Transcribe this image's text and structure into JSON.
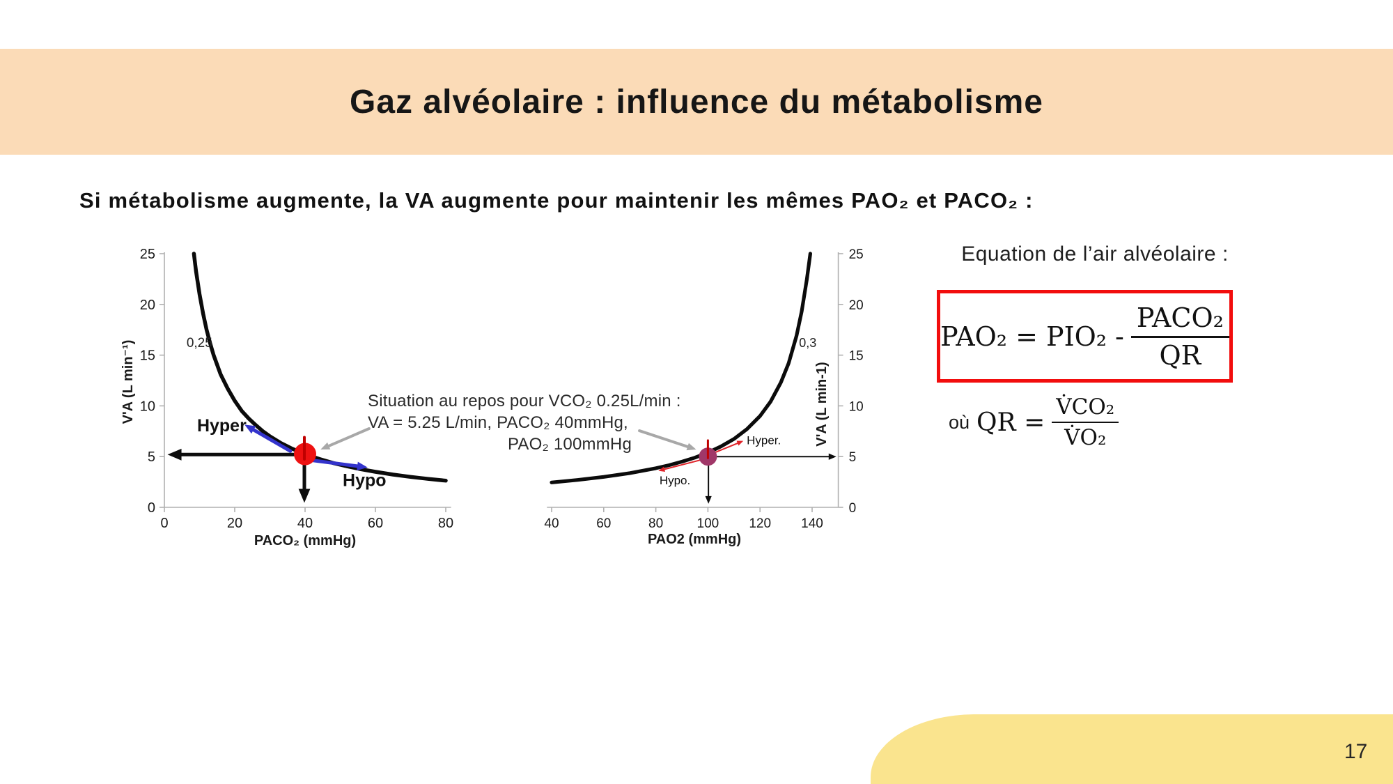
{
  "slide": {
    "title": "Gaz alvéolaire : influence du métabolisme",
    "subtitle": "Si métabolisme augmente, la VA augmente pour maintenir les mêmes PAO₂ et PACO₂ :",
    "page_number": "17"
  },
  "annotation": {
    "lines": [
      "Situation au repos pour VCO₂ 0.25L/min :",
      "VA = 5.25 L/min, PACO₂ 40mmHg,",
      "PAO₂ 100mmHg"
    ]
  },
  "equation_panel": {
    "heading": "Equation de l’air alvéolaire :",
    "boxed": {
      "lhs": "PAO₂ = PIO₂ -",
      "numerator": "PACO₂",
      "denominator": "QR"
    },
    "qr": {
      "prefix": "où",
      "lhs": "QR =",
      "numerator": "V̇CO₂",
      "denominator": "V̇O₂"
    }
  },
  "colors": {
    "header_band": "#fbdbb7",
    "footer_blob": "#fae48e",
    "equation_box_border": "#f20d0d",
    "axis": "#b0b0b0",
    "curve": "#0b0b0b",
    "blue_arrow": "#3333cc",
    "red_arrow": "#e0242a",
    "gray_arrow": "#a8a8a8"
  },
  "chart_data": [
    {
      "type": "line",
      "name": "iso-metabolic VCO2 curve",
      "xlabel": "PACO₂ (mmHg)",
      "ylabel": "V'A (L min⁻¹)",
      "xlim": [
        0,
        81.5
      ],
      "ylim": [
        0,
        25
      ],
      "x_ticks": [
        0,
        20,
        40,
        60,
        80
      ],
      "y_ticks": [
        0,
        5,
        10,
        15,
        20,
        25
      ],
      "curve_label": {
        "text": "0,25",
        "x": 6.3,
        "y": 15.8,
        "size": 19
      },
      "curve_points": [
        [
          8.4,
          25
        ],
        [
          9,
          23.3
        ],
        [
          10,
          21
        ],
        [
          11,
          19.1
        ],
        [
          12,
          17.5
        ],
        [
          13,
          16.2
        ],
        [
          14,
          15
        ],
        [
          16,
          13.1
        ],
        [
          18,
          11.7
        ],
        [
          20,
          10.5
        ],
        [
          22,
          9.5
        ],
        [
          24,
          8.75
        ],
        [
          26,
          8.1
        ],
        [
          28,
          7.5
        ],
        [
          30,
          7.0
        ],
        [
          33,
          6.36
        ],
        [
          36,
          5.83
        ],
        [
          40,
          5.25
        ],
        [
          44,
          4.77
        ],
        [
          48,
          4.37
        ],
        [
          52,
          4.04
        ],
        [
          56,
          3.75
        ],
        [
          60,
          3.5
        ],
        [
          65,
          3.23
        ],
        [
          70,
          3.0
        ],
        [
          75,
          2.8
        ],
        [
          80,
          2.63
        ]
      ],
      "marker": {
        "x": 40,
        "y": 5.25,
        "radius": 16,
        "color": "#ee1111"
      },
      "marker_tick": {
        "x1": 39.8,
        "y1": 6.9,
        "x2": 39.8,
        "y2": 4.75,
        "color": "#c00000",
        "width": 4
      },
      "arrows": [
        {
          "x1": 39.2,
          "y1": 5.2,
          "x2": 0.9,
          "y2": 5.2,
          "color": "#0d0d0d",
          "width": 5,
          "head": 20
        },
        {
          "x1": 39.8,
          "y1": 4.9,
          "x2": 39.8,
          "y2": 0.45,
          "color": "#0d0d0d",
          "width": 5,
          "head": 20
        },
        {
          "x1": 35.8,
          "y1": 5.55,
          "x2": 22.8,
          "y2": 8.15,
          "color": "#3333cc",
          "width": 5,
          "head": 15
        },
        {
          "x1": 42.3,
          "y1": 4.62,
          "x2": 57.8,
          "y2": 3.93,
          "color": "#3333cc",
          "width": 5,
          "head": 15
        },
        {
          "x1": 58.2,
          "y1": 7.76,
          "x2": 44.4,
          "y2": 5.7,
          "color": "#a8a8a8",
          "width": 4,
          "head": 13
        }
      ],
      "labels": [
        {
          "text": "Hyper",
          "x": 9.3,
          "y": 7.5,
          "size": 25,
          "weight": "bold"
        },
        {
          "text": "Hypo",
          "x": 50.7,
          "y": 2.1,
          "size": 25,
          "weight": "bold"
        }
      ]
    },
    {
      "type": "line",
      "name": "alveolar O2 vs ventilation curve",
      "xlabel": "PAO2 (mmHg)",
      "ylabel": "V'A (L min-1)",
      "xlim": [
        38.2,
        150
      ],
      "ylim": [
        0,
        25
      ],
      "x_ticks": [
        40,
        60,
        80,
        100,
        120,
        140
      ],
      "y_ticks": [
        0,
        5,
        10,
        15,
        20,
        25
      ],
      "curve_label": {
        "text": "0,3",
        "x": 135.0,
        "y": 15.8,
        "size": 18
      },
      "curve_points": [
        [
          40,
          2.45
        ],
        [
          50,
          2.7
        ],
        [
          60,
          3.0
        ],
        [
          70,
          3.37
        ],
        [
          80,
          3.85
        ],
        [
          85,
          4.15
        ],
        [
          90,
          4.5
        ],
        [
          95,
          4.9
        ],
        [
          100,
          5.39
        ],
        [
          105,
          6.0
        ],
        [
          110,
          6.74
        ],
        [
          115,
          7.71
        ],
        [
          120,
          9.0
        ],
        [
          124,
          10.4
        ],
        [
          128,
          12.3
        ],
        [
          131,
          14.2
        ],
        [
          134,
          16.9
        ],
        [
          136,
          19.3
        ],
        [
          138,
          22.5
        ],
        [
          139.3,
          25
        ]
      ],
      "marker": {
        "x": 100,
        "y": 5.0,
        "radius": 13,
        "color": "#a03768"
      },
      "marker_tick": {
        "x1": 100,
        "y1": 6.6,
        "x2": 100,
        "y2": 4.85,
        "color": "#c00000",
        "width": 3
      },
      "arrows": [
        {
          "x1": 101.5,
          "y1": 5.0,
          "x2": 149.3,
          "y2": 5.0,
          "color": "#0d0d0d",
          "width": 2,
          "head": 11
        },
        {
          "x1": 100.2,
          "y1": 4.75,
          "x2": 100.2,
          "y2": 0.35,
          "color": "#0d0d0d",
          "width": 2,
          "head": 11
        },
        {
          "x1": 102.2,
          "y1": 5.35,
          "x2": 113.6,
          "y2": 6.55,
          "color": "#e0242a",
          "width": 2,
          "head": 9
        },
        {
          "x1": 97.7,
          "y1": 4.7,
          "x2": 81.0,
          "y2": 3.6,
          "color": "#e0242a",
          "width": 2,
          "head": 9
        },
        {
          "x1": 73.7,
          "y1": 7.55,
          "x2": 95.5,
          "y2": 5.7,
          "color": "#a8a8a8",
          "width": 4,
          "head": 13
        }
      ],
      "labels": [
        {
          "text": "Hyper.",
          "x": 114.9,
          "y": 6.2,
          "size": 17,
          "weight": "normal"
        },
        {
          "text": "Hypo.",
          "x": 81.4,
          "y": 2.25,
          "size": 17,
          "weight": "normal"
        }
      ]
    }
  ]
}
